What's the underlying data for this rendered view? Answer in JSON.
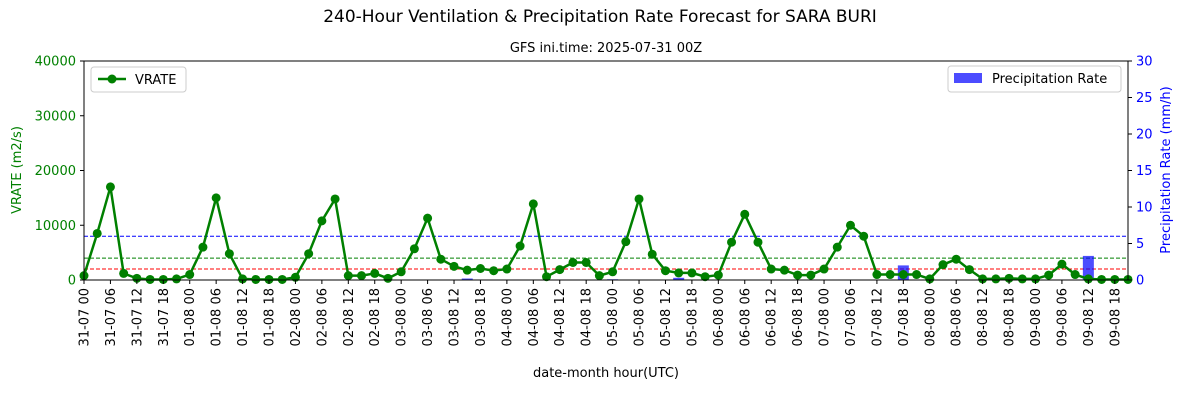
{
  "chart_data": {
    "type": "line",
    "title": "240-Hour Ventilation & Precipitation Rate Forecast for SARA BURI",
    "subtitle": "GFS ini.time: 2025-07-31 00Z",
    "xlabel": "date-month hour(UTC)",
    "ylabel_left": "VRATE (m2/s)",
    "ylabel_right": "Precipitation Rate (mm/h)",
    "ylim_left": [
      0,
      40000
    ],
    "ylim_right": [
      0,
      30
    ],
    "yticks_left": [
      "0",
      "10000",
      "20000",
      "30000",
      "40000"
    ],
    "yticks_right": [
      "0",
      "5",
      "10",
      "15",
      "20",
      "25",
      "30"
    ],
    "legend_left": "VRATE",
    "legend_right": "Precipitation Rate",
    "legend_left_position": "top-left",
    "legend_right_position": "top-right",
    "reference_lines": [
      {
        "axis": "left",
        "value": 2000,
        "color": "#ff0000"
      },
      {
        "axis": "left",
        "value": 4000,
        "color": "#008000"
      },
      {
        "axis": "left",
        "value": 8000,
        "color": "#0000ff"
      }
    ],
    "x_labels": [
      "31-07 00",
      "31-07 06",
      "31-07 12",
      "31-07 18",
      "01-08 00",
      "01-08 06",
      "01-08 12",
      "01-08 18",
      "02-08 00",
      "02-08 06",
      "02-08 12",
      "02-08 18",
      "03-08 00",
      "03-08 06",
      "03-08 12",
      "03-08 18",
      "04-08 00",
      "04-08 06",
      "04-08 12",
      "04-08 18",
      "05-08 00",
      "05-08 06",
      "05-08 12",
      "05-08 18",
      "06-08 00",
      "06-08 06",
      "06-08 12",
      "06-08 18",
      "07-08 00",
      "07-08 06",
      "07-08 12",
      "07-08 18",
      "08-08 00",
      "08-08 06",
      "08-08 12",
      "08-08 18",
      "09-08 00",
      "09-08 06",
      "09-08 12",
      "09-08 18"
    ],
    "series": [
      {
        "name": "VRATE",
        "axis": "left",
        "color": "#008000",
        "x_hours": [
          0,
          3,
          6,
          9,
          12,
          15,
          18,
          21,
          24,
          27,
          30,
          33,
          36,
          39,
          42,
          45,
          48,
          51,
          54,
          57,
          60,
          63,
          66,
          69,
          72,
          75,
          78,
          81,
          84,
          87,
          90,
          93,
          96,
          99,
          102,
          105,
          108,
          111,
          114,
          117,
          120,
          123,
          126,
          129,
          132,
          135,
          138,
          141,
          144,
          147,
          150,
          153,
          156,
          159,
          162,
          165,
          168,
          171,
          174,
          177,
          180,
          183,
          186,
          189,
          192,
          195,
          198,
          201,
          204,
          207,
          210,
          213,
          216,
          219,
          222,
          225,
          228,
          231,
          234,
          237
        ],
        "values": [
          800,
          8500,
          17000,
          1200,
          300,
          100,
          100,
          200,
          1000,
          6000,
          15000,
          4800,
          200,
          100,
          100,
          100,
          500,
          4800,
          10800,
          14800,
          800,
          800,
          1200,
          300,
          1500,
          5700,
          11300,
          3800,
          2500,
          1800,
          2100,
          1700,
          2000,
          6200,
          13900,
          600,
          1900,
          3200,
          3200,
          800,
          1500,
          7000,
          14800,
          4700,
          1700,
          1300,
          1300,
          600,
          900,
          6900,
          12000,
          6900,
          2000,
          1800,
          900,
          900,
          2000,
          6000,
          10000,
          8000,
          1000,
          1000,
          1000,
          1000,
          200,
          2800,
          3800,
          1900,
          200,
          200,
          300,
          200,
          200,
          900,
          2900,
          1000,
          200,
          100,
          100,
          100
        ]
      },
      {
        "name": "Precipitation Rate",
        "axis": "right",
        "color": "#0000ff",
        "x_hours": [
          87,
          120,
          135,
          186,
          228
        ],
        "values": [
          0.2,
          0.1,
          0.3,
          2.0,
          3.3
        ]
      }
    ]
  }
}
